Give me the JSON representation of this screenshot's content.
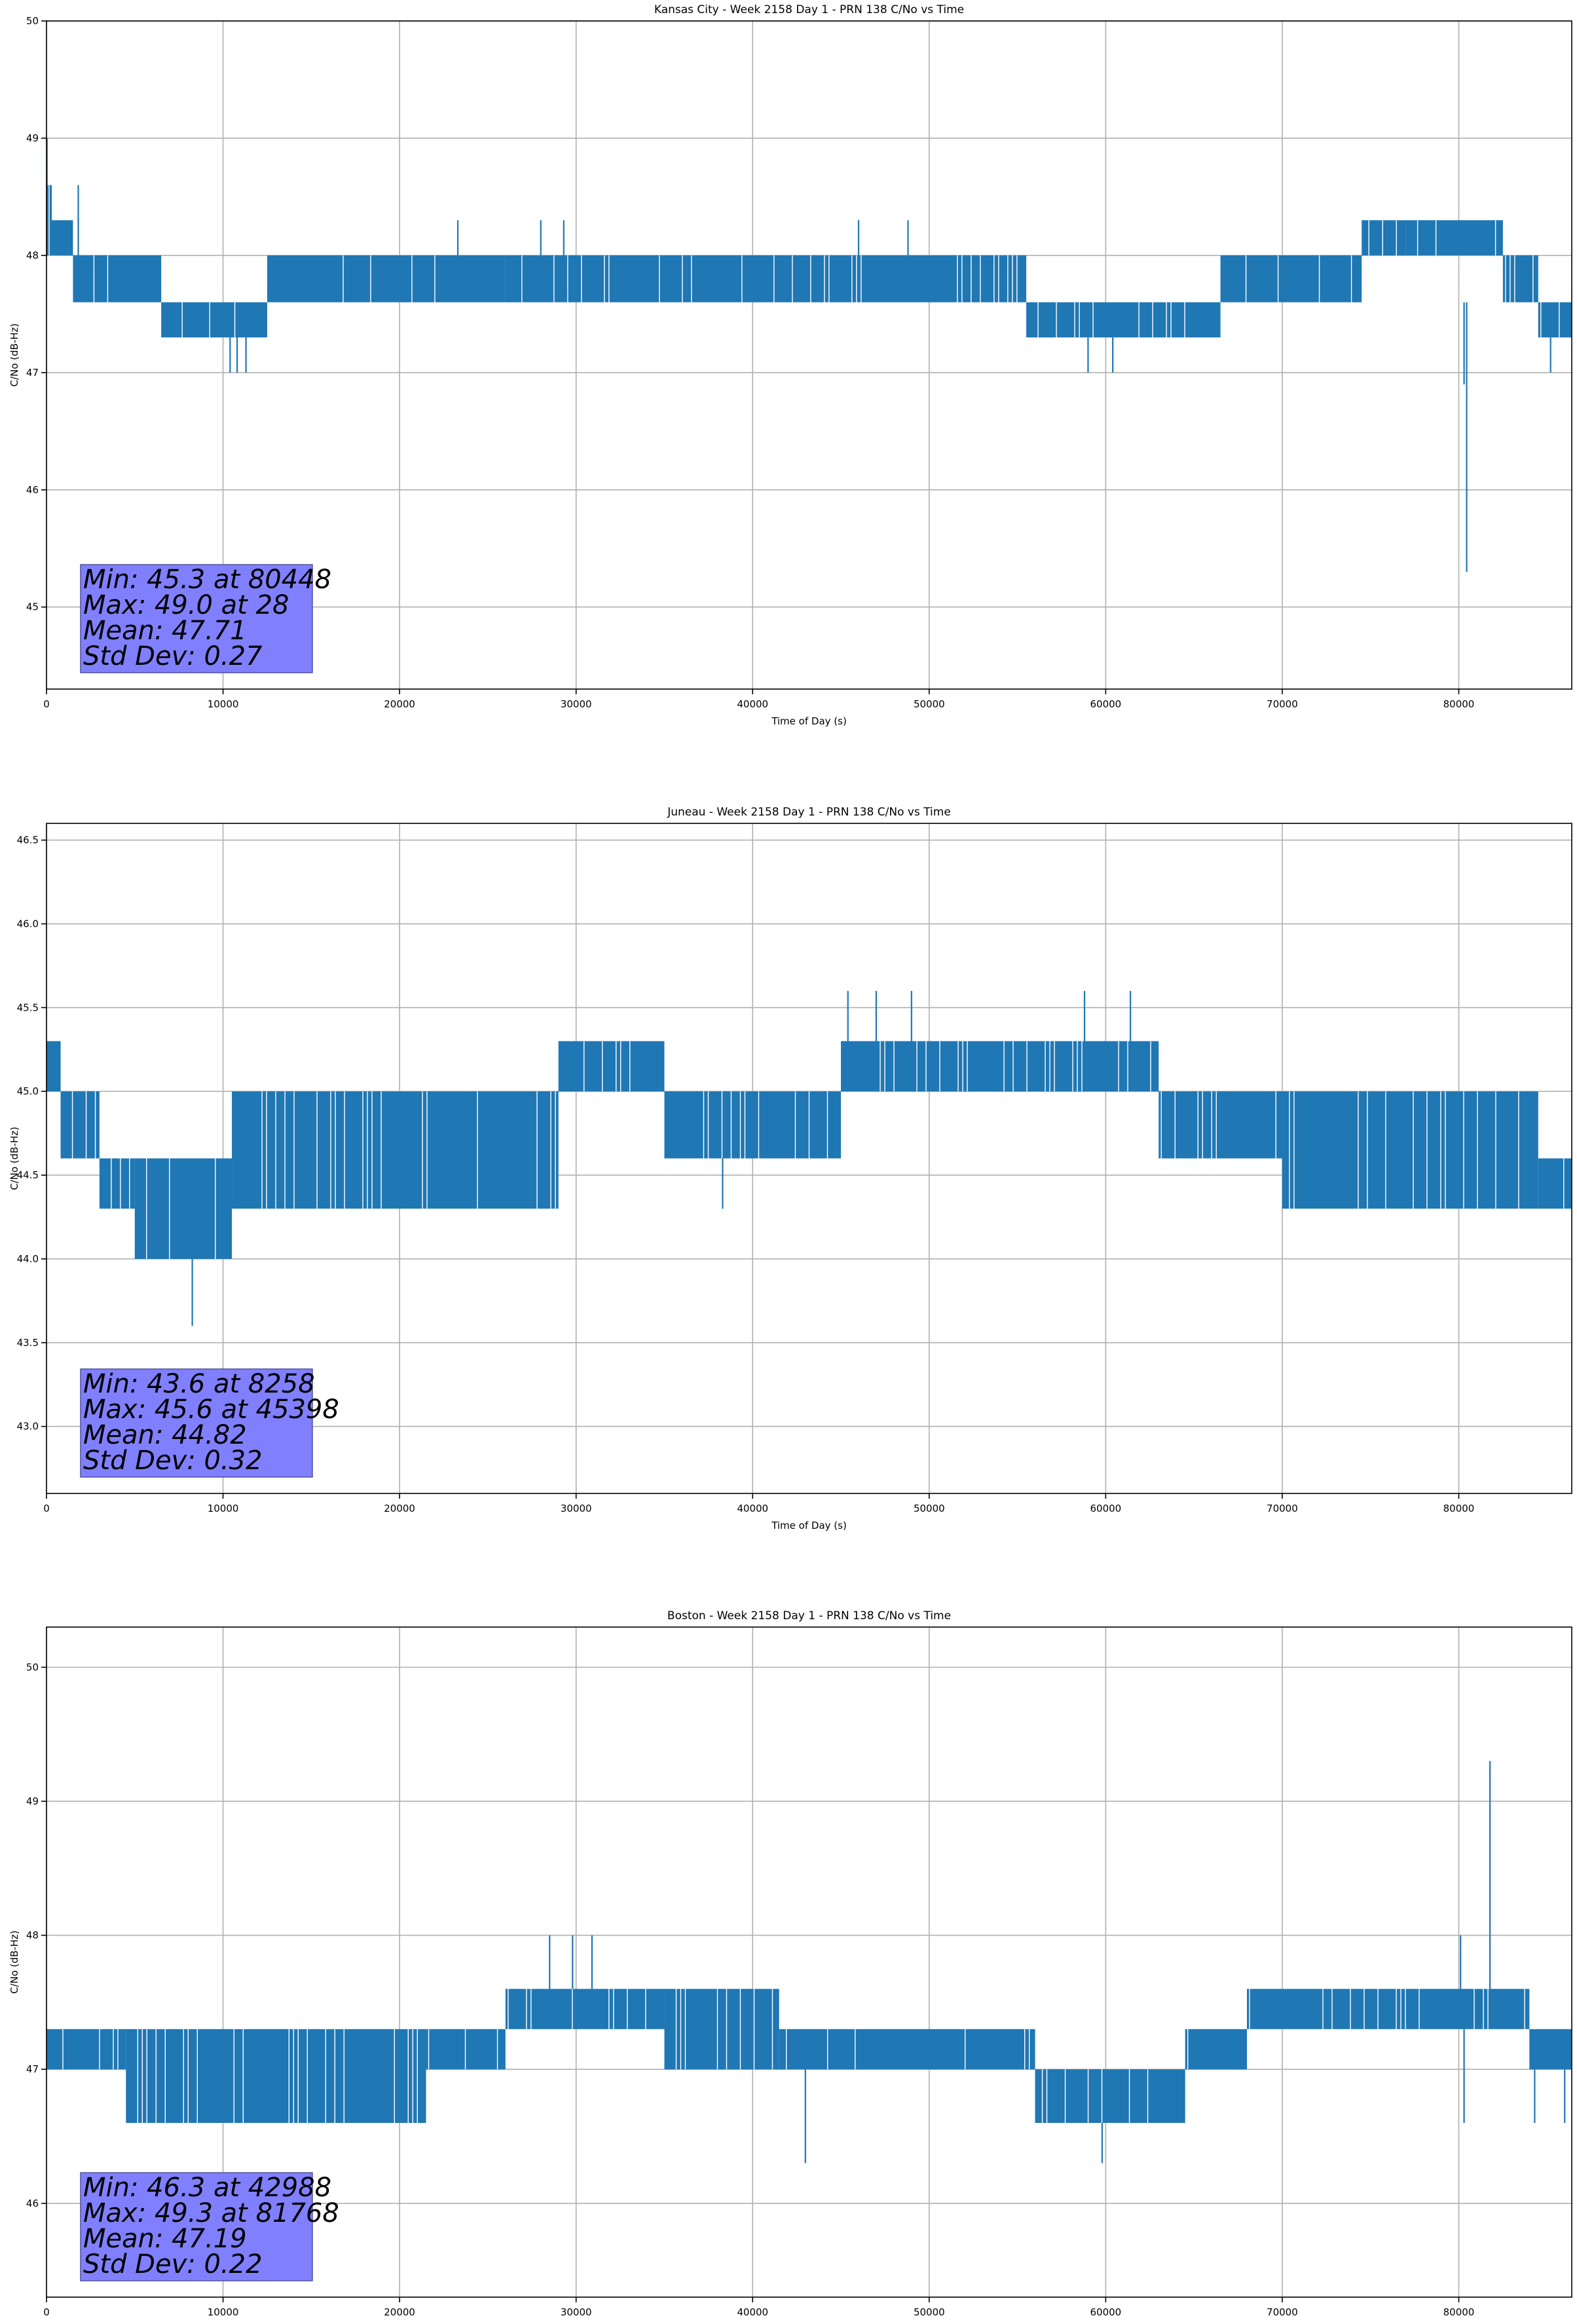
{
  "chart_data": [
    {
      "type": "line",
      "title": "Kansas City - Week 2158 Day 1 - PRN 138 C/No vs Time",
      "xlabel": "Time of Day (s)",
      "ylabel": "C/No (dB-Hz)",
      "xlim": [
        0,
        86400
      ],
      "ylim": [
        44.3,
        50.0
      ],
      "xticks": [
        0,
        10000,
        20000,
        30000,
        40000,
        50000,
        60000,
        70000,
        80000
      ],
      "yticks": [
        45,
        46,
        47,
        48,
        49,
        50
      ],
      "ytick_decimals": 0,
      "grid": true,
      "color": "#1f77b4",
      "stats": [
        "Min: 45.3 at 80448",
        "Max: 49.0 at 28",
        "Mean: 47.71",
        "Std Dev: 0.27"
      ],
      "series": [
        {
          "band_segments": [
            [
              0,
              300,
              48.0,
              48.6
            ],
            [
              300,
              1500,
              48.0,
              48.3
            ],
            [
              1500,
              6500,
              47.6,
              48.0
            ],
            [
              6500,
              10000,
              47.3,
              47.6
            ],
            [
              10000,
              12500,
              47.3,
              47.6
            ],
            [
              12500,
              26000,
              47.6,
              48.0
            ],
            [
              26000,
              55500,
              47.6,
              48.0
            ],
            [
              55500,
              66500,
              47.3,
              47.6
            ],
            [
              66500,
              74500,
              47.6,
              48.0
            ],
            [
              74500,
              77000,
              48.0,
              48.3
            ],
            [
              77000,
              82500,
              48.0,
              48.3
            ],
            [
              82500,
              84500,
              47.6,
              48.0
            ],
            [
              84500,
              86400,
              47.3,
              47.6
            ]
          ],
          "spikes": [
            [
              28,
              48.0,
              49.0
            ],
            [
              1800,
              48.0,
              48.6
            ],
            [
              10400,
              47.3,
              47.0
            ],
            [
              10800,
              47.3,
              47.0
            ],
            [
              11300,
              47.3,
              47.0
            ],
            [
              23300,
              48.0,
              48.3
            ],
            [
              28000,
              48.0,
              48.3
            ],
            [
              29300,
              48.0,
              48.3
            ],
            [
              46000,
              48.0,
              48.3
            ],
            [
              48800,
              48.0,
              48.3
            ],
            [
              59000,
              47.3,
              47.0
            ],
            [
              60400,
              47.3,
              47.0
            ],
            [
              80300,
              47.6,
              46.9
            ],
            [
              80448,
              47.6,
              45.3
            ],
            [
              85200,
              47.3,
              47.0
            ]
          ]
        }
      ]
    },
    {
      "type": "line",
      "title": "Juneau - Week 2158 Day 1 - PRN 138 C/No vs Time",
      "xlabel": "Time of Day (s)",
      "ylabel": "C/No (dB-Hz)",
      "xlim": [
        0,
        86400
      ],
      "ylim": [
        42.6,
        46.6
      ],
      "xticks": [
        0,
        10000,
        20000,
        30000,
        40000,
        50000,
        60000,
        70000,
        80000
      ],
      "yticks": [
        43.0,
        43.5,
        44.0,
        44.5,
        45.0,
        45.5,
        46.0,
        46.5
      ],
      "ytick_decimals": 1,
      "grid": true,
      "color": "#1f77b4",
      "stats": [
        "Min: 43.6 at 8258",
        "Max: 45.6 at 45398",
        "Mean: 44.82",
        "Std Dev: 0.32"
      ],
      "series": [
        {
          "band_segments": [
            [
              0,
              800,
              45.0,
              45.3
            ],
            [
              800,
              3000,
              44.6,
              45.0
            ],
            [
              3000,
              5000,
              44.3,
              44.6
            ],
            [
              5000,
              10500,
              44.0,
              44.6
            ],
            [
              10500,
              29000,
              44.3,
              45.0
            ],
            [
              29000,
              35000,
              45.0,
              45.3
            ],
            [
              35000,
              45000,
              44.6,
              45.0
            ],
            [
              45000,
              63000,
              45.0,
              45.3
            ],
            [
              63000,
              70000,
              44.6,
              45.0
            ],
            [
              70000,
              84500,
              44.3,
              45.0
            ],
            [
              84500,
              86400,
              44.3,
              44.6
            ]
          ],
          "spikes": [
            [
              8258,
              44.3,
              43.6
            ],
            [
              38300,
              44.6,
              44.3
            ],
            [
              45398,
              45.3,
              45.6
            ],
            [
              47000,
              45.3,
              45.6
            ],
            [
              49000,
              45.3,
              45.6
            ],
            [
              58800,
              45.3,
              45.6
            ],
            [
              61400,
              45.3,
              45.6
            ]
          ]
        }
      ]
    },
    {
      "type": "line",
      "title": "Boston - Week 2158 Day 1 - PRN 138 C/No vs Time",
      "xlabel": "Time of Day (s)",
      "ylabel": "C/No (dB-Hz)",
      "xlim": [
        0,
        86400
      ],
      "ylim": [
        45.3,
        50.3
      ],
      "xticks": [
        0,
        10000,
        20000,
        30000,
        40000,
        50000,
        60000,
        70000,
        80000
      ],
      "yticks": [
        46,
        47,
        48,
        49,
        50
      ],
      "ytick_decimals": 0,
      "grid": true,
      "color": "#1f77b4",
      "stats": [
        "Min: 46.3 at 42988",
        "Max: 49.3 at 81768",
        "Mean: 47.19",
        "Std Dev: 0.22"
      ],
      "series": [
        {
          "band_segments": [
            [
              0,
              4500,
              47.0,
              47.3
            ],
            [
              4500,
              21500,
              46.6,
              47.3
            ],
            [
              21500,
              26000,
              47.0,
              47.3
            ],
            [
              26000,
              35000,
              47.3,
              47.6
            ],
            [
              35000,
              41500,
              47.0,
              47.6
            ],
            [
              41500,
              56000,
              47.0,
              47.3
            ],
            [
              56000,
              64500,
              46.6,
              47.0
            ],
            [
              64500,
              68000,
              47.0,
              47.3
            ],
            [
              68000,
              84000,
              47.3,
              47.6
            ],
            [
              84000,
              86400,
              47.0,
              47.3
            ]
          ],
          "spikes": [
            [
              28500,
              47.6,
              48.0
            ],
            [
              29800,
              47.6,
              48.0
            ],
            [
              30900,
              47.6,
              48.0
            ],
            [
              42988,
              47.0,
              46.3
            ],
            [
              59800,
              46.6,
              46.3
            ],
            [
              80100,
              47.6,
              48.0
            ],
            [
              80300,
              47.3,
              46.6
            ],
            [
              81768,
              47.6,
              49.3
            ],
            [
              84300,
              47.0,
              46.6
            ],
            [
              86000,
              47.0,
              46.6
            ]
          ]
        }
      ]
    }
  ]
}
